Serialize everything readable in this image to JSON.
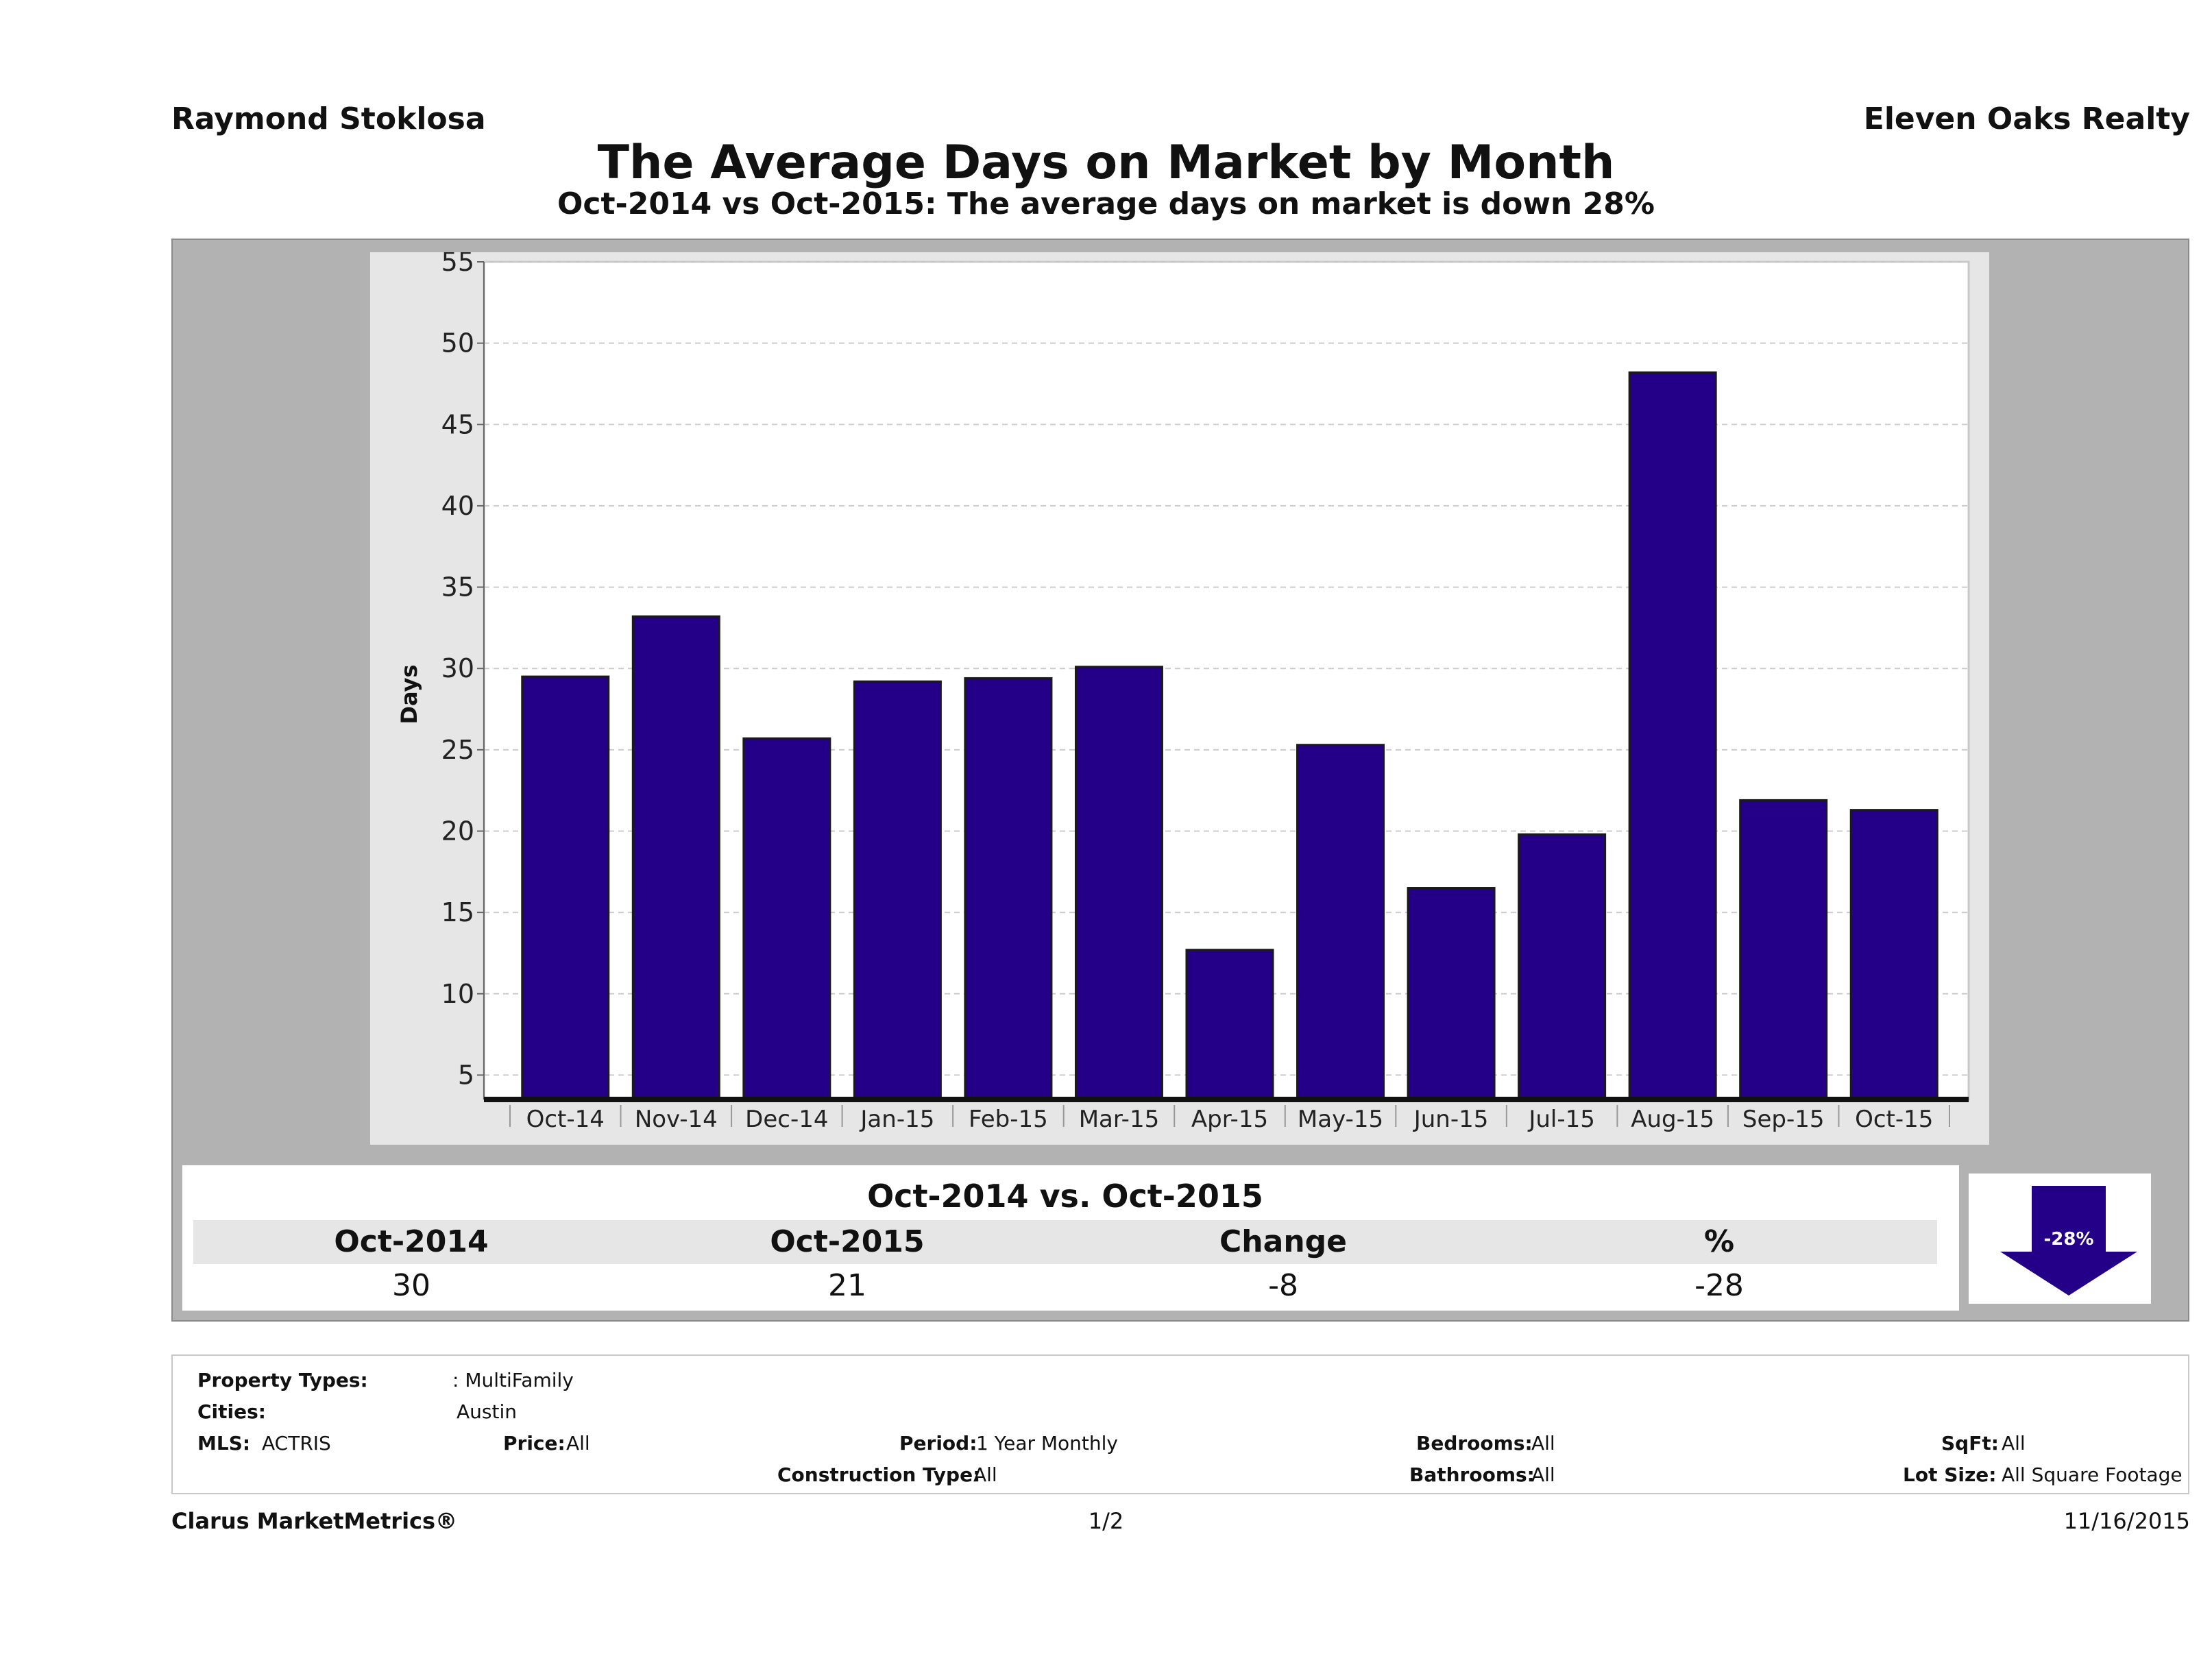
{
  "header": {
    "agent": "Raymond Stoklosa",
    "company": "Eleven Oaks Realty",
    "title": "The Average Days on Market by Month",
    "subtitle": "Oct-2014 vs Oct-2015: The average days on market is down 28%"
  },
  "chart_data": {
    "type": "bar",
    "categories": [
      "Oct-14",
      "Nov-14",
      "Dec-14",
      "Jan-15",
      "Feb-15",
      "Mar-15",
      "Apr-15",
      "May-15",
      "Jun-15",
      "Jul-15",
      "Aug-15",
      "Sep-15",
      "Oct-15"
    ],
    "values": [
      29.5,
      33.2,
      25.7,
      29.2,
      29.4,
      30.1,
      12.7,
      25.3,
      16.5,
      19.8,
      48.2,
      21.9,
      21.3
    ],
    "ylabel": "Days",
    "ylim": [
      3.5,
      55
    ],
    "yticks": [
      5,
      10,
      15,
      20,
      25,
      30,
      35,
      40,
      45,
      50,
      55
    ],
    "bar_color": "#240088",
    "grid": true,
    "legend": "none"
  },
  "summary": {
    "title": "Oct-2014 vs. Oct-2015",
    "headers": [
      "Oct-2014",
      "Oct-2015",
      "Change",
      "%"
    ],
    "values": [
      "30",
      "21",
      "-8",
      "-28"
    ],
    "arrow_label": "-28%",
    "arrow_color": "#240088"
  },
  "filters": {
    "property_types_label": "Property Types:",
    "property_types_value": ": MultiFamily",
    "cities_label": "Cities:",
    "cities_value": "Austin",
    "mls_label": "MLS:",
    "mls_value": "ACTRIS",
    "price_label": "Price:",
    "price_value": "All",
    "period_label": "Period:",
    "period_value": "1 Year Monthly",
    "construction_label": "Construction Type:",
    "construction_value": "All",
    "bedrooms_label": "Bedrooms:",
    "bedrooms_value": "All",
    "bathrooms_label": "Bathrooms:",
    "bathrooms_value": "All",
    "sqft_label": "SqFt:",
    "sqft_value": "All",
    "lot_label": "Lot Size:",
    "lot_value": "All Square Footage"
  },
  "footer": {
    "brand": "Clarus MarketMetrics®",
    "page": "1/2",
    "date": "11/16/2015"
  }
}
